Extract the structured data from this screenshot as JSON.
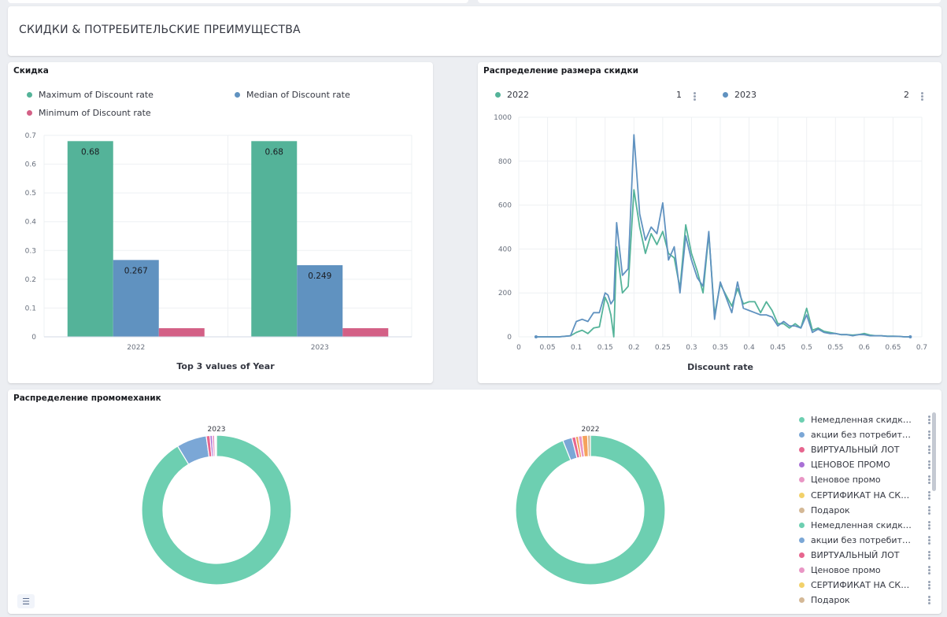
{
  "dashboard_title": "СКИДКИ & ПОТРЕБИТЕЛЬСКИЕ ПРЕИМУЩЕСТВА",
  "panels": {
    "discount": {
      "title": "Скидка"
    },
    "distribution": {
      "title": "Распределение размера скидки"
    },
    "promo": {
      "title": "Распределение промомеханик"
    }
  },
  "colors": {
    "green": "#54b399",
    "blue": "#6092c0",
    "pink": "#d36086",
    "green_light": "#6dcfb1"
  },
  "chart_data": [
    {
      "type": "bar",
      "title": "Скидка",
      "xlabel": "Top 3 values of Year",
      "ylabel": "",
      "categories": [
        "2022",
        "2023"
      ],
      "ylim": [
        0,
        0.7
      ],
      "yticks": [
        "0",
        "0.1",
        "0.2",
        "0.3",
        "0.4",
        "0.5",
        "0.6",
        "0.7"
      ],
      "series": [
        {
          "name": "Maximum of Discount rate",
          "color": "#54b399",
          "values": [
            0.68,
            0.68
          ],
          "labels": [
            "0.68",
            "0.68"
          ]
        },
        {
          "name": "Median of Discount rate",
          "color": "#6092c0",
          "values": [
            0.267,
            0.249
          ],
          "labels": [
            "0.267",
            "0.249"
          ]
        },
        {
          "name": "Minimum of Discount rate",
          "color": "#d36086",
          "values": [
            0.03,
            0.03
          ],
          "labels": [
            "",
            ""
          ]
        }
      ],
      "legend": "top"
    },
    {
      "type": "line",
      "title": "Распределение размера скидки",
      "xlabel": "Discount rate",
      "ylabel": "",
      "xlim": [
        0,
        0.7
      ],
      "ylim": [
        0,
        1000
      ],
      "xticks": [
        "0",
        "0.05",
        "0.1",
        "0.15",
        "0.2",
        "0.25",
        "0.3",
        "0.35",
        "0.4",
        "0.45",
        "0.5",
        "0.55",
        "0.6",
        "0.65",
        "0.7"
      ],
      "yticks": [
        "0",
        "200",
        "400",
        "600",
        "800",
        "1000"
      ],
      "legend_counts": [
        "1",
        "2"
      ],
      "series": [
        {
          "name": "2022",
          "color": "#54b399",
          "x": [
            0.03,
            0.05,
            0.07,
            0.09,
            0.1,
            0.11,
            0.12,
            0.13,
            0.14,
            0.15,
            0.155,
            0.16,
            0.165,
            0.17,
            0.18,
            0.19,
            0.2,
            0.21,
            0.22,
            0.23,
            0.24,
            0.25,
            0.26,
            0.27,
            0.28,
            0.29,
            0.3,
            0.31,
            0.32,
            0.33,
            0.34,
            0.35,
            0.36,
            0.37,
            0.38,
            0.39,
            0.4,
            0.41,
            0.42,
            0.43,
            0.44,
            0.45,
            0.46,
            0.47,
            0.48,
            0.49,
            0.5,
            0.51,
            0.52,
            0.53,
            0.54,
            0.55,
            0.56,
            0.57,
            0.58,
            0.59,
            0.6,
            0.61,
            0.62,
            0.63,
            0.64,
            0.65,
            0.66,
            0.67,
            0.68
          ],
          "y": [
            0,
            0,
            0,
            5,
            20,
            30,
            15,
            40,
            45,
            180,
            150,
            100,
            0,
            410,
            200,
            230,
            670,
            500,
            380,
            470,
            420,
            480,
            380,
            360,
            220,
            510,
            380,
            300,
            200,
            470,
            100,
            240,
            190,
            140,
            220,
            150,
            160,
            160,
            110,
            160,
            120,
            60,
            60,
            40,
            60,
            40,
            130,
            30,
            40,
            25,
            20,
            15,
            10,
            10,
            8,
            10,
            15,
            8,
            5,
            5,
            3,
            3,
            2,
            0,
            0
          ]
        },
        {
          "name": "2023",
          "color": "#6092c0",
          "x": [
            0.03,
            0.05,
            0.07,
            0.09,
            0.1,
            0.11,
            0.12,
            0.13,
            0.14,
            0.15,
            0.155,
            0.16,
            0.165,
            0.17,
            0.18,
            0.19,
            0.2,
            0.21,
            0.22,
            0.23,
            0.24,
            0.25,
            0.26,
            0.27,
            0.28,
            0.29,
            0.3,
            0.31,
            0.32,
            0.33,
            0.34,
            0.35,
            0.36,
            0.37,
            0.38,
            0.39,
            0.4,
            0.41,
            0.42,
            0.43,
            0.44,
            0.45,
            0.46,
            0.47,
            0.48,
            0.49,
            0.5,
            0.51,
            0.52,
            0.53,
            0.54,
            0.55,
            0.56,
            0.57,
            0.58,
            0.59,
            0.6,
            0.61,
            0.62,
            0.63,
            0.64,
            0.65,
            0.66,
            0.67,
            0.68
          ],
          "y": [
            0,
            0,
            0,
            5,
            70,
            80,
            70,
            110,
            110,
            200,
            190,
            150,
            170,
            520,
            280,
            310,
            920,
            560,
            440,
            500,
            470,
            610,
            350,
            410,
            200,
            460,
            350,
            270,
            230,
            480,
            80,
            250,
            180,
            110,
            250,
            130,
            120,
            110,
            100,
            100,
            90,
            50,
            70,
            50,
            50,
            40,
            100,
            20,
            35,
            20,
            15,
            15,
            10,
            10,
            5,
            10,
            10,
            5,
            5,
            5,
            2,
            2,
            2,
            0,
            0
          ]
        }
      ],
      "legend": "top"
    },
    {
      "type": "pie",
      "title": "2023",
      "slices": [
        {
          "label": "Немедленная скидка п...",
          "value": 91.3,
          "color": "#6dcfb1"
        },
        {
          "label": "акции без потребитель...",
          "value": 6.5,
          "color": "#7ba7d6"
        },
        {
          "label": "ВИРТУАЛЬНЫЙ ЛОТ",
          "value": 0.8,
          "color": "#e7668f"
        },
        {
          "label": "ЦЕНОВОЕ ПРОМО",
          "value": 0.5,
          "color": "#a970d6"
        },
        {
          "label": "Ценовое промо",
          "value": 0.5,
          "color": "#e996c5"
        },
        {
          "label": "СЕРТИФИКАТ НА СКИ...",
          "value": 0.2,
          "color": "#f2d16a"
        },
        {
          "label": "Подарок",
          "value": 0.2,
          "color": "#d4b896"
        }
      ]
    },
    {
      "type": "pie",
      "title": "2022",
      "slices": [
        {
          "label": "Немедленная скидка п...",
          "value": 94.0,
          "color": "#6dcfb1"
        },
        {
          "label": "акции без потребитель...",
          "value": 2.0,
          "color": "#7ba7d6"
        },
        {
          "label": "ВИРТУАЛЬНЫЙ ЛОТ",
          "value": 0.8,
          "color": "#e7668f"
        },
        {
          "label": "ЦЕНОВОЕ ПРОМО",
          "value": 0.6,
          "color": "#f0a05a"
        },
        {
          "label": "Ценовое промо",
          "value": 0.8,
          "color": "#e996c5"
        },
        {
          "label": "СЕРТИФИКАТ НА СКИ...",
          "value": 1.2,
          "color": "#f5a25d"
        },
        {
          "label": "Подарок",
          "value": 0.6,
          "color": "#d4b896"
        }
      ]
    }
  ],
  "pie_legend": [
    {
      "label": "Немедленная скидка п...",
      "color": "#6dcfb1"
    },
    {
      "label": "акции без потребитель...",
      "color": "#7ba7d6"
    },
    {
      "label": "ВИРТУАЛЬНЫЙ ЛОТ",
      "color": "#e7668f"
    },
    {
      "label": "ЦЕНОВОЕ ПРОМО",
      "color": "#a970d6"
    },
    {
      "label": "Ценовое промо",
      "color": "#e996c5"
    },
    {
      "label": "СЕРТИФИКАТ НА СКИ...",
      "color": "#f2d16a"
    },
    {
      "label": "Подарок",
      "color": "#d4b896"
    },
    {
      "label": "Немедленная скидка п...",
      "color": "#6dcfb1"
    },
    {
      "label": "акции без потребитель...",
      "color": "#7ba7d6"
    },
    {
      "label": "ВИРТУАЛЬНЫЙ ЛОТ",
      "color": "#e7668f"
    },
    {
      "label": "Ценовое промо",
      "color": "#e996c5"
    },
    {
      "label": "СЕРТИФИКАТ НА СКИ...",
      "color": "#f2d16a"
    },
    {
      "label": "Подарок",
      "color": "#d4b896"
    }
  ]
}
